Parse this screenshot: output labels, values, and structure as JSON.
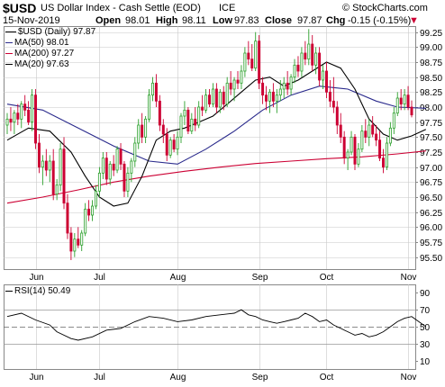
{
  "header": {
    "symbol": "$USD",
    "name": "US Dollar Index - Cash Settle (EOD)",
    "exchange": "ICE",
    "watermark": "© StockCharts.com",
    "date": "15-Nov-2019",
    "open_label": "Open",
    "open": "98.01",
    "high_label": "High",
    "high": "98.11",
    "low_label": "Low",
    "low": "97.83",
    "close_label": "Close",
    "close": "97.87",
    "chg_label": "Chg",
    "chg": "-0.15 (-0.15%)",
    "chg_marker": "▼"
  },
  "legend": {
    "price": "$USD (Daily) 97.87",
    "ma50": "MA(50) 98.01",
    "ma200": "MA(200) 97.27",
    "ma20": "MA(20) 97.63",
    "rsi": "RSI(14) 50.49"
  },
  "colors": {
    "up": "#2ca02c",
    "down": "#cc0033",
    "ma50": "#2a2a8c",
    "ma200": "#cc0033",
    "ma20": "#000000",
    "rsi": "#000000",
    "grid": "#c8c8c8",
    "frame": "#888888"
  },
  "chart_data": [
    {
      "type": "candlestick",
      "title": "$USD US Dollar Index - Cash Settle (EOD) ICE",
      "ylim": [
        95.3,
        99.35
      ],
      "y_ticks": [
        "95.50",
        "95.75",
        "96.00",
        "96.25",
        "96.50",
        "96.75",
        "97.00",
        "97.25",
        "97.50",
        "97.75",
        "98.00",
        "98.25",
        "98.50",
        "98.75",
        "99.00",
        "99.25"
      ],
      "months": [
        {
          "label": "Jun",
          "index": 8
        },
        {
          "label": "Jul",
          "index": 26
        },
        {
          "label": "Aug",
          "index": 48
        },
        {
          "label": "Sep",
          "index": 71
        },
        {
          "label": "Oct",
          "index": 90
        },
        {
          "label": "Nov",
          "index": 113
        }
      ],
      "candles": [
        [
          97.7,
          97.9,
          97.55,
          97.8
        ],
        [
          97.8,
          98.0,
          97.6,
          97.75
        ],
        [
          97.75,
          97.95,
          97.55,
          97.9
        ],
        [
          97.9,
          98.05,
          97.7,
          97.8
        ],
        [
          97.8,
          98.1,
          97.65,
          98.05
        ],
        [
          98.05,
          98.2,
          97.85,
          97.95
        ],
        [
          97.95,
          98.1,
          97.7,
          97.75
        ],
        [
          97.75,
          98.3,
          97.6,
          98.2
        ],
        [
          98.2,
          98.3,
          97.3,
          97.4
        ],
        [
          97.4,
          97.55,
          96.9,
          97.0
        ],
        [
          97.0,
          97.2,
          96.7,
          97.1
        ],
        [
          97.1,
          97.3,
          96.85,
          96.95
        ],
        [
          96.95,
          97.2,
          96.75,
          97.1
        ],
        [
          97.1,
          97.3,
          96.45,
          96.55
        ],
        [
          96.55,
          96.8,
          96.45,
          96.7
        ],
        [
          96.7,
          97.4,
          96.6,
          97.3
        ],
        [
          97.3,
          97.5,
          96.3,
          96.4
        ],
        [
          96.4,
          96.55,
          95.8,
          95.9
        ],
        [
          95.9,
          96.0,
          95.45,
          95.6
        ],
        [
          95.6,
          95.9,
          95.5,
          95.8
        ],
        [
          95.8,
          96.0,
          95.65,
          95.7
        ],
        [
          95.7,
          95.95,
          95.6,
          95.9
        ],
        [
          95.9,
          96.4,
          95.85,
          96.3
        ],
        [
          96.3,
          96.45,
          96.1,
          96.2
        ],
        [
          96.2,
          96.45,
          96.1,
          96.35
        ],
        [
          96.35,
          96.7,
          96.3,
          96.6
        ],
        [
          96.6,
          97.0,
          96.5,
          96.9
        ],
        [
          96.9,
          97.25,
          96.8,
          97.15
        ],
        [
          97.15,
          97.25,
          96.7,
          96.8
        ],
        [
          96.8,
          97.1,
          96.7,
          97.05
        ],
        [
          97.05,
          97.2,
          96.85,
          96.95
        ],
        [
          96.95,
          97.35,
          96.9,
          97.3
        ],
        [
          97.3,
          97.4,
          96.95,
          97.05
        ],
        [
          97.05,
          97.1,
          96.5,
          96.6
        ],
        [
          96.6,
          97.0,
          96.5,
          96.9
        ],
        [
          96.9,
          97.15,
          96.75,
          97.1
        ],
        [
          97.1,
          97.5,
          97.0,
          97.4
        ],
        [
          97.4,
          97.8,
          97.3,
          97.7
        ],
        [
          97.7,
          97.9,
          97.4,
          97.5
        ],
        [
          97.5,
          97.85,
          97.4,
          97.8
        ],
        [
          97.8,
          98.3,
          97.75,
          98.2
        ],
        [
          98.2,
          98.5,
          98.1,
          98.4
        ],
        [
          98.4,
          98.55,
          98.0,
          98.1
        ],
        [
          98.1,
          98.2,
          97.6,
          97.7
        ],
        [
          97.7,
          97.8,
          97.4,
          97.55
        ],
        [
          97.55,
          97.65,
          97.1,
          97.2
        ],
        [
          97.2,
          97.5,
          97.15,
          97.45
        ],
        [
          97.45,
          97.55,
          97.25,
          97.3
        ],
        [
          97.3,
          97.6,
          97.2,
          97.5
        ],
        [
          97.5,
          97.9,
          97.4,
          97.85
        ],
        [
          97.85,
          98.1,
          97.7,
          97.95
        ],
        [
          97.95,
          98.0,
          97.55,
          97.6
        ],
        [
          97.6,
          97.9,
          97.55,
          97.8
        ],
        [
          97.8,
          98.0,
          97.6,
          97.7
        ],
        [
          97.7,
          98.1,
          97.65,
          98.0
        ],
        [
          98.0,
          98.2,
          97.85,
          97.95
        ],
        [
          97.95,
          98.3,
          97.9,
          98.2
        ],
        [
          98.2,
          98.3,
          98.0,
          98.05
        ],
        [
          98.05,
          98.4,
          98.0,
          98.3
        ],
        [
          98.3,
          98.4,
          97.9,
          98.0
        ],
        [
          98.0,
          98.3,
          97.9,
          98.25
        ],
        [
          98.25,
          98.35,
          97.95,
          98.05
        ],
        [
          98.05,
          98.5,
          98.0,
          98.4
        ],
        [
          98.4,
          98.6,
          98.2,
          98.3
        ],
        [
          98.3,
          98.5,
          98.1,
          98.45
        ],
        [
          98.45,
          98.6,
          98.3,
          98.4
        ],
        [
          98.4,
          98.7,
          98.3,
          98.6
        ],
        [
          98.6,
          99.0,
          98.5,
          98.9
        ],
        [
          98.9,
          99.1,
          98.7,
          98.8
        ],
        [
          98.8,
          99.05,
          98.6,
          98.65
        ],
        [
          98.65,
          99.25,
          98.6,
          99.1
        ],
        [
          99.1,
          99.2,
          98.3,
          98.4
        ],
        [
          98.4,
          98.5,
          98.05,
          98.2
        ],
        [
          98.2,
          98.35,
          97.95,
          98.1
        ],
        [
          98.1,
          98.3,
          97.9,
          98.25
        ],
        [
          98.25,
          98.4,
          98.0,
          98.1
        ],
        [
          98.1,
          98.3,
          97.9,
          98.2
        ],
        [
          98.2,
          98.45,
          98.1,
          98.3
        ],
        [
          98.3,
          98.5,
          98.15,
          98.4
        ],
        [
          98.4,
          98.6,
          98.2,
          98.3
        ],
        [
          98.3,
          98.55,
          98.2,
          98.5
        ],
        [
          98.5,
          98.8,
          98.4,
          98.7
        ],
        [
          98.7,
          98.85,
          98.5,
          98.6
        ],
        [
          98.6,
          99.0,
          98.5,
          98.9
        ],
        [
          98.9,
          99.1,
          98.7,
          98.8
        ],
        [
          98.8,
          99.3,
          98.7,
          99.05
        ],
        [
          99.05,
          99.2,
          98.6,
          98.7
        ],
        [
          98.7,
          99.0,
          98.55,
          98.9
        ],
        [
          98.9,
          99.0,
          98.35,
          98.45
        ],
        [
          98.45,
          98.7,
          98.3,
          98.6
        ],
        [
          98.6,
          98.75,
          98.15,
          98.25
        ],
        [
          98.25,
          98.45,
          98.0,
          98.1
        ],
        [
          98.1,
          98.5,
          97.9,
          98.0
        ],
        [
          98.0,
          98.1,
          97.55,
          97.7
        ],
        [
          97.7,
          97.9,
          97.4,
          97.5
        ],
        [
          97.5,
          97.6,
          97.05,
          97.15
        ],
        [
          97.15,
          97.3,
          96.95,
          97.25
        ],
        [
          97.25,
          97.6,
          97.2,
          97.5
        ],
        [
          97.5,
          97.55,
          96.95,
          97.05
        ],
        [
          97.05,
          97.4,
          97.0,
          97.3
        ],
        [
          97.3,
          97.7,
          97.25,
          97.6
        ],
        [
          97.6,
          97.8,
          97.4,
          97.5
        ],
        [
          97.5,
          97.8,
          97.35,
          97.7
        ],
        [
          97.7,
          97.85,
          97.5,
          97.55
        ],
        [
          97.55,
          97.7,
          97.35,
          97.45
        ],
        [
          97.45,
          97.6,
          97.1,
          97.15
        ],
        [
          97.15,
          97.3,
          96.9,
          97.0
        ],
        [
          97.0,
          97.5,
          96.95,
          97.4
        ],
        [
          97.4,
          97.75,
          97.35,
          97.65
        ],
        [
          97.65,
          98.0,
          97.55,
          97.9
        ],
        [
          97.9,
          98.25,
          97.85,
          98.15
        ],
        [
          98.15,
          98.3,
          97.95,
          98.05
        ],
        [
          98.05,
          98.3,
          97.95,
          98.2
        ],
        [
          98.2,
          98.35,
          97.95,
          98.0
        ],
        [
          98.0,
          98.11,
          97.83,
          97.87
        ]
      ],
      "ma50": [
        [
          0,
          98.05
        ],
        [
          10,
          97.95
        ],
        [
          20,
          97.65
        ],
        [
          30,
          97.35
        ],
        [
          40,
          97.1
        ],
        [
          48,
          97.05
        ],
        [
          56,
          97.3
        ],
        [
          64,
          97.6
        ],
        [
          72,
          97.95
        ],
        [
          80,
          98.2
        ],
        [
          88,
          98.35
        ],
        [
          96,
          98.3
        ],
        [
          104,
          98.1
        ],
        [
          110,
          98.0
        ],
        [
          118,
          97.98
        ]
      ],
      "ma200": [
        [
          0,
          96.4
        ],
        [
          10,
          96.5
        ],
        [
          20,
          96.62
        ],
        [
          30,
          96.75
        ],
        [
          40,
          96.85
        ],
        [
          50,
          96.93
        ],
        [
          60,
          97.0
        ],
        [
          70,
          97.06
        ],
        [
          80,
          97.1
        ],
        [
          90,
          97.14
        ],
        [
          100,
          97.17
        ],
        [
          110,
          97.22
        ],
        [
          118,
          97.27
        ]
      ],
      "ma20": [
        [
          0,
          97.45
        ],
        [
          6,
          97.65
        ],
        [
          12,
          97.6
        ],
        [
          18,
          97.25
        ],
        [
          22,
          96.85
        ],
        [
          26,
          96.5
        ],
        [
          30,
          96.35
        ],
        [
          34,
          96.4
        ],
        [
          38,
          96.85
        ],
        [
          42,
          97.45
        ],
        [
          46,
          97.6
        ],
        [
          50,
          97.65
        ],
        [
          54,
          97.75
        ],
        [
          58,
          97.85
        ],
        [
          62,
          98.05
        ],
        [
          66,
          98.25
        ],
        [
          70,
          98.45
        ],
        [
          74,
          98.5
        ],
        [
          78,
          98.35
        ],
        [
          82,
          98.45
        ],
        [
          86,
          98.6
        ],
        [
          90,
          98.75
        ],
        [
          94,
          98.65
        ],
        [
          98,
          98.3
        ],
        [
          102,
          97.8
        ],
        [
          106,
          97.55
        ],
        [
          110,
          97.45
        ],
        [
          114,
          97.52
        ],
        [
          118,
          97.63
        ]
      ]
    },
    {
      "type": "line",
      "title": "RSI(14)",
      "ylim": [
        0,
        100
      ],
      "y_ticks": [
        "10",
        "30",
        "50",
        "70",
        "90"
      ],
      "reference_lines": [
        30,
        50,
        70
      ],
      "values": [
        [
          0,
          62
        ],
        [
          4,
          66
        ],
        [
          8,
          58
        ],
        [
          12,
          52
        ],
        [
          14,
          44
        ],
        [
          18,
          36
        ],
        [
          20,
          34
        ],
        [
          24,
          38
        ],
        [
          28,
          46
        ],
        [
          32,
          48
        ],
        [
          36,
          56
        ],
        [
          40,
          62
        ],
        [
          44,
          60
        ],
        [
          48,
          56
        ],
        [
          52,
          58
        ],
        [
          56,
          62
        ],
        [
          60,
          64
        ],
        [
          64,
          66
        ],
        [
          66,
          70
        ],
        [
          68,
          64
        ],
        [
          70,
          62
        ],
        [
          72,
          58
        ],
        [
          74,
          56
        ],
        [
          76,
          54
        ],
        [
          78,
          56
        ],
        [
          80,
          58
        ],
        [
          82,
          60
        ],
        [
          84,
          66
        ],
        [
          86,
          62
        ],
        [
          88,
          56
        ],
        [
          90,
          58
        ],
        [
          92,
          52
        ],
        [
          94,
          48
        ],
        [
          96,
          44
        ],
        [
          98,
          40
        ],
        [
          100,
          42
        ],
        [
          102,
          38
        ],
        [
          104,
          40
        ],
        [
          106,
          44
        ],
        [
          108,
          50
        ],
        [
          110,
          56
        ],
        [
          112,
          60
        ],
        [
          114,
          62
        ],
        [
          116,
          56
        ],
        [
          118,
          50
        ]
      ]
    }
  ]
}
